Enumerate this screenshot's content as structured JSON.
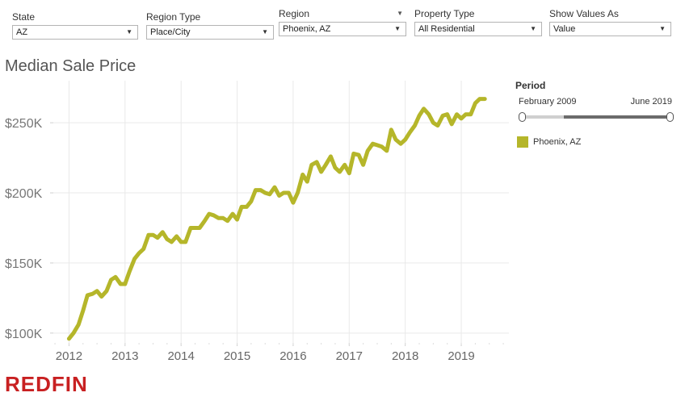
{
  "filters": {
    "state": {
      "label": "State",
      "value": "AZ"
    },
    "region_type": {
      "label": "Region Type",
      "value": "Place/City"
    },
    "region": {
      "label": "Region",
      "value": "Phoenix, AZ"
    },
    "property_type": {
      "label": "Property Type",
      "value": "All Residential"
    },
    "show_values_as": {
      "label": "Show Values As",
      "value": "Value"
    }
  },
  "period": {
    "title": "Period",
    "start": "February 2009",
    "end": "June 2019"
  },
  "legend": {
    "label": "Phoenix, AZ"
  },
  "logo": "REDFIN",
  "colors": {
    "line": "#b5b62a",
    "logo": "#c82021",
    "grid": "#e9e9e9",
    "axis_text": "#777777"
  },
  "chart_data": {
    "type": "line",
    "title": "Median Sale Price",
    "xlabel": "",
    "ylabel": "",
    "x_ticks": [
      "2012",
      "2013",
      "2014",
      "2015",
      "2016",
      "2017",
      "2018",
      "2019"
    ],
    "y_ticks": [
      "$100K",
      "$150K",
      "$200K",
      "$250K"
    ],
    "ylim": [
      93000,
      280000
    ],
    "xlim": [
      2011.72,
      2019.85
    ],
    "grid": true,
    "legend_position": "right",
    "series": [
      {
        "name": "Phoenix, AZ",
        "x": [
          2012.0,
          2012.08,
          2012.17,
          2012.25,
          2012.33,
          2012.42,
          2012.5,
          2012.58,
          2012.67,
          2012.75,
          2012.83,
          2012.92,
          2013.0,
          2013.08,
          2013.17,
          2013.25,
          2013.33,
          2013.42,
          2013.5,
          2013.58,
          2013.67,
          2013.75,
          2013.83,
          2013.92,
          2014.0,
          2014.08,
          2014.17,
          2014.25,
          2014.33,
          2014.42,
          2014.5,
          2014.58,
          2014.67,
          2014.75,
          2014.83,
          2014.92,
          2015.0,
          2015.08,
          2015.17,
          2015.25,
          2015.33,
          2015.42,
          2015.5,
          2015.58,
          2015.67,
          2015.75,
          2015.83,
          2015.92,
          2016.0,
          2016.08,
          2016.17,
          2016.25,
          2016.33,
          2016.42,
          2016.5,
          2016.58,
          2016.67,
          2016.75,
          2016.83,
          2016.92,
          2017.0,
          2017.08,
          2017.17,
          2017.25,
          2017.33,
          2017.42,
          2017.5,
          2017.58,
          2017.67,
          2017.75,
          2017.83,
          2017.92,
          2018.0,
          2018.08,
          2018.17,
          2018.25,
          2018.33,
          2018.42,
          2018.5,
          2018.58,
          2018.67,
          2018.75,
          2018.83,
          2018.92,
          2019.0,
          2019.08,
          2019.17,
          2019.25,
          2019.33,
          2019.42
        ],
        "values": [
          96000,
          100000,
          106000,
          116000,
          127000,
          128000,
          130000,
          126000,
          130000,
          138000,
          140000,
          135000,
          135000,
          144000,
          153000,
          157000,
          160000,
          170000,
          170000,
          168000,
          172000,
          167000,
          165000,
          169000,
          165000,
          165000,
          175000,
          175000,
          175000,
          180000,
          185000,
          184000,
          182000,
          182000,
          180000,
          185000,
          181000,
          190000,
          190000,
          194000,
          202000,
          202000,
          200000,
          199000,
          204000,
          198000,
          200000,
          200000,
          193000,
          200000,
          213000,
          208000,
          220000,
          222000,
          215000,
          220000,
          226000,
          218000,
          215000,
          220000,
          214000,
          228000,
          227000,
          220000,
          230000,
          235000,
          234000,
          233000,
          230000,
          245000,
          238000,
          235000,
          238000,
          243000,
          248000,
          255000,
          260000,
          256000,
          250000,
          248000,
          255000,
          256000,
          249000,
          256000,
          253000,
          256000,
          256000,
          264000,
          267000,
          267000
        ]
      }
    ]
  }
}
